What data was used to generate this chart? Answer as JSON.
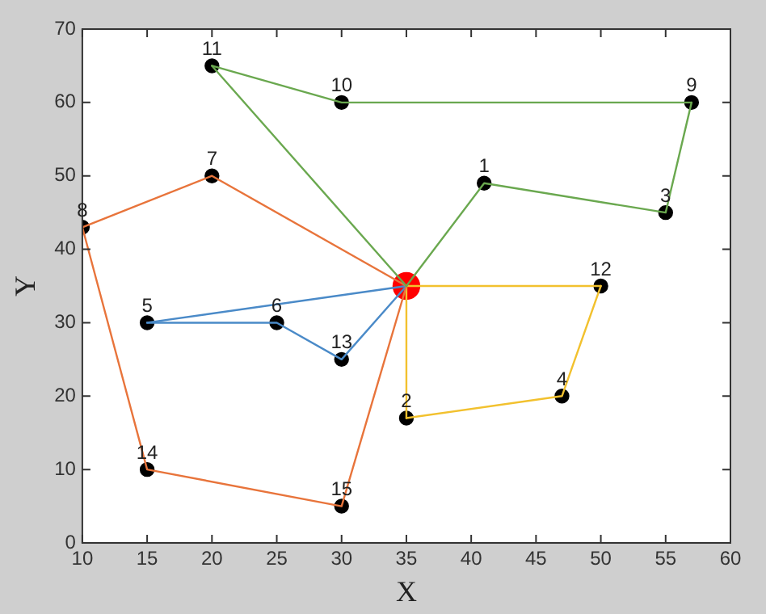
{
  "chart_data": {
    "type": "line",
    "xlabel": "X",
    "ylabel": "Y",
    "xlim": [
      10,
      60
    ],
    "xticks": [
      10,
      15,
      20,
      25,
      30,
      35,
      40,
      45,
      50,
      55,
      60
    ],
    "ylim": [
      0,
      70
    ],
    "yticks": [
      0,
      10,
      20,
      30,
      40,
      50,
      60,
      70
    ],
    "grid": false,
    "legend": false,
    "series": [
      {
        "type": "line",
        "marker": "none",
        "color": "#6aa84f",
        "x": [
          35,
          41,
          55,
          57
        ],
        "values": [
          35,
          49,
          45,
          60
        ]
      },
      {
        "type": "line",
        "marker": "none",
        "color": "#6aa84f",
        "x": [
          20,
          30,
          57
        ],
        "values": [
          65,
          60,
          60
        ]
      },
      {
        "type": "line",
        "marker": "none",
        "color": "#6aa84f",
        "x": [
          20,
          35
        ],
        "values": [
          65,
          35
        ]
      },
      {
        "type": "line",
        "marker": "none",
        "color": "#e8743b",
        "x": [
          10,
          20,
          35
        ],
        "values": [
          43,
          50,
          35
        ]
      },
      {
        "type": "line",
        "marker": "none",
        "color": "#e8743b",
        "x": [
          10,
          15,
          30,
          35
        ],
        "values": [
          43,
          10,
          5,
          35
        ]
      },
      {
        "type": "line",
        "marker": "none",
        "color": "#4a8ac8",
        "x": [
          15,
          35
        ],
        "values": [
          30,
          35
        ]
      },
      {
        "type": "line",
        "marker": "none",
        "color": "#4a8ac8",
        "x": [
          15,
          25,
          30,
          35
        ],
        "values": [
          30,
          30,
          25,
          35
        ]
      },
      {
        "type": "line",
        "marker": "none",
        "color": "#f2c12e",
        "x": [
          35,
          50
        ],
        "values": [
          35,
          35
        ]
      },
      {
        "type": "line",
        "marker": "none",
        "color": "#f2c12e",
        "x": [
          35,
          47,
          50
        ],
        "values": [
          17,
          20,
          35
        ]
      },
      {
        "type": "line",
        "marker": "none",
        "color": "#f2c12e",
        "x": [
          35,
          35
        ],
        "values": [
          17,
          35
        ]
      },
      {
        "type": "scatter",
        "marker": "circle",
        "color": "#000000",
        "x": [
          41,
          35,
          55,
          47,
          15,
          25,
          20,
          10,
          57,
          30,
          20,
          50,
          30,
          15,
          30
        ],
        "values": [
          49,
          17,
          45,
          20,
          30,
          30,
          50,
          43,
          60,
          60,
          65,
          35,
          25,
          10,
          5
        ]
      },
      {
        "type": "scatter",
        "marker": "circle",
        "color": "#ff0000",
        "x": [
          35
        ],
        "values": [
          35
        ]
      }
    ],
    "annotations": [
      {
        "text": "1",
        "x": 41,
        "y": 49
      },
      {
        "text": "2",
        "x": 35,
        "y": 17
      },
      {
        "text": "3",
        "x": 55,
        "y": 45
      },
      {
        "text": "4",
        "x": 47,
        "y": 20
      },
      {
        "text": "5",
        "x": 15,
        "y": 30
      },
      {
        "text": "6",
        "x": 25,
        "y": 30
      },
      {
        "text": "7",
        "x": 20,
        "y": 50
      },
      {
        "text": "8",
        "x": 10,
        "y": 43
      },
      {
        "text": "9",
        "x": 57,
        "y": 60
      },
      {
        "text": "10",
        "x": 30,
        "y": 60
      },
      {
        "text": "11",
        "x": 20,
        "y": 65
      },
      {
        "text": "12",
        "x": 50,
        "y": 35
      },
      {
        "text": "13",
        "x": 30,
        "y": 25
      },
      {
        "text": "14",
        "x": 15,
        "y": 10
      },
      {
        "text": "15",
        "x": 30,
        "y": 5
      }
    ]
  }
}
